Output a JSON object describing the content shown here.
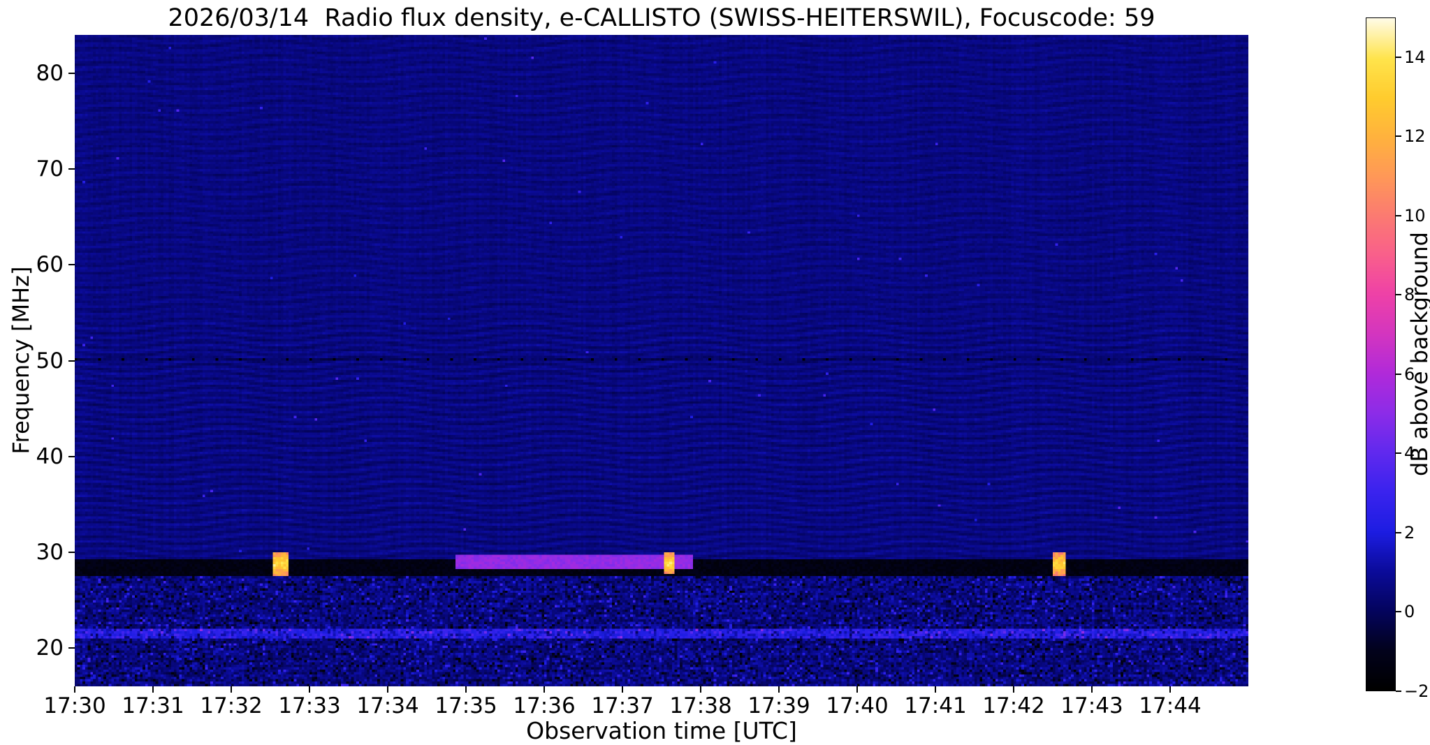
{
  "chart_data": {
    "type": "heatmap",
    "title": "2026/03/14  Radio flux density, e-CALLISTO (SWISS-HEITERSWIL), Focuscode: 59",
    "xlabel": "Observation time [UTC]",
    "ylabel": "Frequency [MHz]",
    "x_ticks": [
      "17:30",
      "17:31",
      "17:32",
      "17:33",
      "17:34",
      "17:35",
      "17:36",
      "17:37",
      "17:38",
      "17:39",
      "17:40",
      "17:41",
      "17:42",
      "17:43",
      "17:44"
    ],
    "x_start_utc": "17:30",
    "x_end_utc": "17:45",
    "duration_s": 900,
    "y_ticks": [
      80,
      70,
      60,
      50,
      40,
      30,
      20
    ],
    "freq_range_mhz": [
      16,
      84
    ],
    "grid": false,
    "colorbar": {
      "label": "dB above background",
      "range_db": [
        -2,
        15
      ],
      "ticks": [
        14,
        12,
        10,
        8,
        6,
        4,
        2,
        0,
        -2
      ],
      "colormap_stops": [
        [
          -2,
          "#000000"
        ],
        [
          -1,
          "#02021c"
        ],
        [
          0,
          "#04045e"
        ],
        [
          1,
          "#0b0b9a"
        ],
        [
          2,
          "#1d1de2"
        ],
        [
          3,
          "#3a23ee"
        ],
        [
          4,
          "#6029ee"
        ],
        [
          5,
          "#8c2ce8"
        ],
        [
          6,
          "#b02ada"
        ],
        [
          7,
          "#d335c0"
        ],
        [
          8,
          "#ee41a8"
        ],
        [
          9,
          "#f95f8c"
        ],
        [
          10,
          "#fb7a72"
        ],
        [
          11,
          "#ff9858"
        ],
        [
          12,
          "#ffb23e"
        ],
        [
          13,
          "#ffcc2e"
        ],
        [
          14,
          "#ffe44c"
        ],
        [
          15,
          "#fffbe4"
        ]
      ]
    },
    "background_db": 0.55,
    "features": {
      "interference_ripples": {
        "description": "faint wavy moire fringes across whole band",
        "amplitude_db": 0.3
      },
      "noise_band": {
        "f_min": 16,
        "f_max": 27.6,
        "description": "speckled broadband RFI noise below 28 MHz"
      },
      "blue_line_21mhz": {
        "f_min": 20.9,
        "f_max": 22.0,
        "db": 1.6
      },
      "dark_rfi_band": {
        "f_min": 27.6,
        "f_max": 29.2,
        "db": -1.7
      },
      "dotted_line_50mhz": {
        "f": 50,
        "dash_period_s": 18,
        "dash_len_s": 2.6,
        "db": -2
      },
      "events": [
        {
          "kind": "burst",
          "name": "bright-burst-1",
          "utc": "17:32:32",
          "t_start_s": 152,
          "t_end_s": 163,
          "f_min": 27.6,
          "f_max": 30.0,
          "peak_db": 13
        },
        {
          "kind": "streak",
          "name": "purple-streak",
          "utc": "17:34:52-17:37:53",
          "t_start_s": 292,
          "t_end_s": 473,
          "f_min": 28.3,
          "f_max": 29.7,
          "db": 5.2
        },
        {
          "kind": "burst",
          "name": "bright-burst-2",
          "utc": "17:37:35",
          "t_start_s": 452,
          "t_end_s": 460,
          "f_min": 27.8,
          "f_max": 29.9,
          "peak_db": 13
        },
        {
          "kind": "burst",
          "name": "bright-burst-3",
          "utc": "17:42:32",
          "t_start_s": 750,
          "t_end_s": 760,
          "f_min": 27.6,
          "f_max": 30.0,
          "peak_db": 12.5
        }
      ]
    }
  }
}
